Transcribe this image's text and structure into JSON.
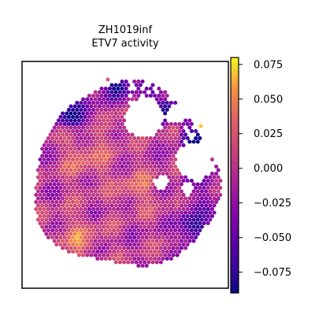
{
  "chart_data": {
    "type": "heatmap",
    "subtype": "hexagonal spatial spot plot",
    "title_lines": [
      "ZH1019inf",
      "ETV7 activity"
    ],
    "colormap": "plasma",
    "colorbar": {
      "range": [
        -0.09,
        0.08
      ],
      "ticks": [
        0.075,
        0.05,
        0.025,
        0.0,
        -0.025,
        -0.05,
        -0.075
      ],
      "tick_labels": [
        "0.075",
        "0.050",
        "0.025",
        "0.000",
        "−0.025",
        "−0.050",
        "−0.075"
      ]
    },
    "axes": {
      "ticks_visible": false,
      "grid": false
    },
    "value_summary": {
      "min": -0.09,
      "max": 0.08,
      "note_hot_spots": [
        "left-center band",
        "lower-left rim",
        "upper-right edge"
      ]
    }
  }
}
